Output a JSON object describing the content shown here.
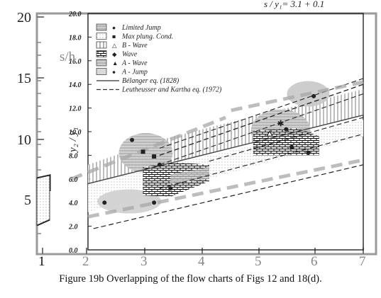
{
  "figure": {
    "caption": "Figure 19b   Overlapping of the flow charts of Figs 12 and 18(d).",
    "top_partial_text": "s / y₁= 3.1 + 0.1"
  },
  "chart_data": {
    "type": "scatter",
    "outer_axes": {
      "ylabel": "s/h",
      "xticks": [
        "1",
        "2",
        "3",
        "4",
        "5",
        "6",
        "7"
      ],
      "yticks": [
        "5",
        "10",
        "15",
        "20"
      ]
    },
    "inner_axes": {
      "ylabel": "y₂ / y₁",
      "yticks": [
        "0.0",
        "2.0",
        "4.0",
        "6.0",
        "8.0",
        "10.0",
        "12.0",
        "14.0",
        "16.0",
        "18.0",
        "20.0"
      ],
      "ylim": [
        0,
        20
      ],
      "xlim": [
        2,
        7
      ]
    },
    "legend": {
      "placement": "top-left",
      "entries": [
        {
          "label": "Limited Jump",
          "symbol": "●"
        },
        {
          "label": "Max plung. Cond.",
          "symbol": "■"
        },
        {
          "label": "B - Wave",
          "symbol": "△"
        },
        {
          "label": "Wave",
          "symbol": "◆"
        },
        {
          "label": "A - Wave",
          "symbol": "▲"
        },
        {
          "label": "A - Jump",
          "symbol": "●"
        },
        {
          "label": "Bélanger eq. (1828)",
          "symbol": "—"
        },
        {
          "label": "Leutheusser and Kartha eq. (1972)",
          "symbol": "- -"
        }
      ]
    },
    "points": [
      {
        "x": 2.3,
        "y": 4.0,
        "m": "circle"
      },
      {
        "x": 2.8,
        "y": 9.3,
        "m": "circle"
      },
      {
        "x": 3.0,
        "y": 8.3,
        "m": "square"
      },
      {
        "x": 3.2,
        "y": 7.9,
        "m": "square"
      },
      {
        "x": 3.3,
        "y": 7.2,
        "m": "circle"
      },
      {
        "x": 3.2,
        "y": 4.0,
        "m": "circle"
      },
      {
        "x": 3.5,
        "y": 5.2,
        "m": "circle"
      },
      {
        "x": 5.3,
        "y": 9.8,
        "m": "triangle"
      },
      {
        "x": 5.5,
        "y": 10.7,
        "m": "star"
      },
      {
        "x": 5.6,
        "y": 10.2,
        "m": "circle"
      },
      {
        "x": 5.7,
        "y": 8.7,
        "m": "circle"
      },
      {
        "x": 6.1,
        "y": 13.0,
        "m": "circle"
      },
      {
        "x": 6.0,
        "y": 8.2,
        "m": "circle"
      }
    ],
    "lines": {
      "belanger": [
        [
          2,
          5.6
        ],
        [
          7,
          11.4
        ]
      ],
      "leutheusser_upper": [
        [
          3.3,
          8.0
        ],
        [
          7,
          14.0
        ]
      ],
      "leutheusser_lower": [
        [
          2.1,
          1.8
        ],
        [
          7,
          7.2
        ]
      ]
    }
  }
}
